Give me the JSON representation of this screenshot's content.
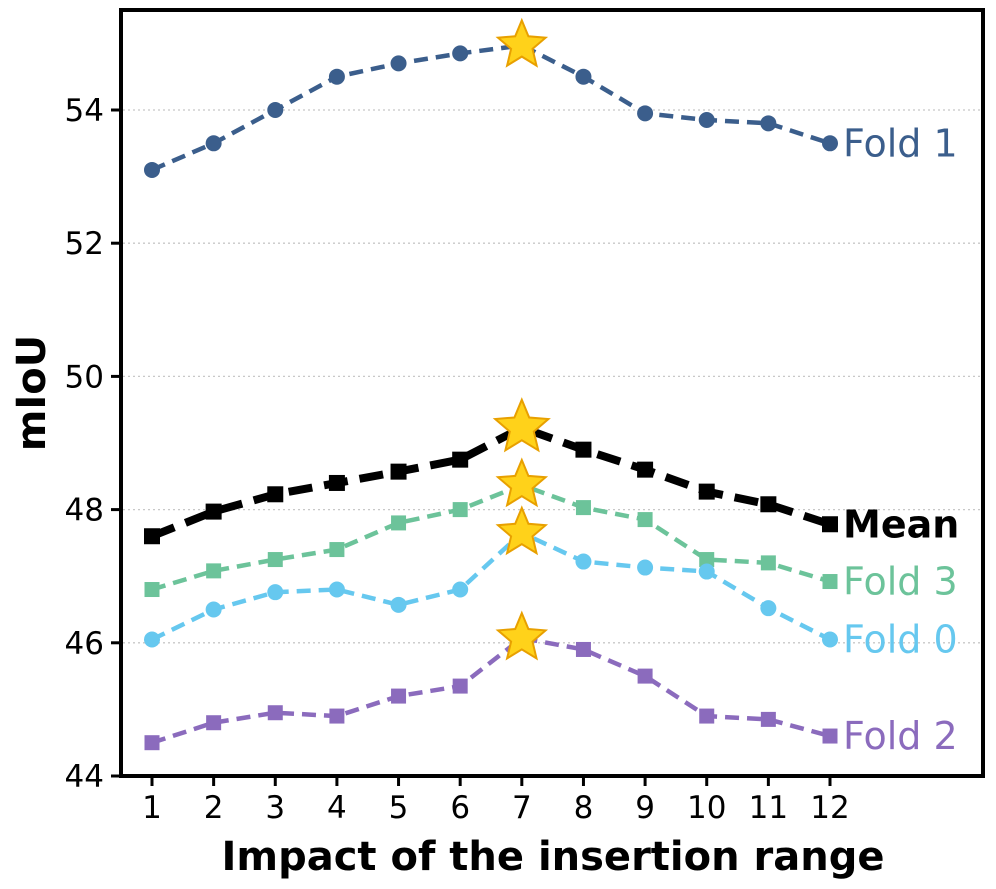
{
  "chart_data": {
    "type": "line",
    "xlabel": "Impact of the insertion range",
    "ylabel": "mIoU",
    "x": [
      1,
      2,
      3,
      4,
      5,
      6,
      7,
      8,
      9,
      10,
      11,
      12
    ],
    "ylim": [
      44,
      56
    ],
    "yticks": [
      44,
      46,
      48,
      50,
      52,
      54
    ],
    "grid": "horizontal dotted",
    "series": [
      {
        "name": "Fold 1",
        "color": "#3b5e8c",
        "marker": "circle",
        "values": [
          53.1,
          53.5,
          54.0,
          54.5,
          54.7,
          54.85,
          54.97,
          54.5,
          53.95,
          53.85,
          53.8,
          53.5
        ],
        "bold": false,
        "star_index": 6
      },
      {
        "name": "Mean",
        "color": "#000000",
        "marker": "square",
        "values": [
          47.6,
          47.97,
          48.23,
          48.4,
          48.57,
          48.75,
          49.23,
          48.9,
          48.6,
          48.27,
          48.08,
          47.78
        ],
        "bold": true,
        "star_index": 6
      },
      {
        "name": "Fold 3",
        "color": "#6cc39a",
        "marker": "square",
        "values": [
          46.8,
          47.08,
          47.25,
          47.4,
          47.8,
          48.0,
          48.37,
          48.03,
          47.85,
          47.25,
          47.2,
          46.92
        ],
        "bold": false,
        "star_index": 6
      },
      {
        "name": "Fold 0",
        "color": "#66c8ef",
        "marker": "circle",
        "values": [
          46.05,
          46.5,
          46.76,
          46.8,
          46.57,
          46.8,
          47.65,
          47.22,
          47.13,
          47.07,
          46.52,
          46.05
        ],
        "bold": false,
        "star_index": 6
      },
      {
        "name": "Fold 2",
        "color": "#8b6bbd",
        "marker": "square",
        "values": [
          44.5,
          44.8,
          44.95,
          44.9,
          45.2,
          45.35,
          46.07,
          45.9,
          45.5,
          44.9,
          44.85,
          44.6
        ],
        "bold": false,
        "star_index": 6
      }
    ],
    "star_color": "#ffd21a",
    "star_edge": "#e8a000"
  }
}
